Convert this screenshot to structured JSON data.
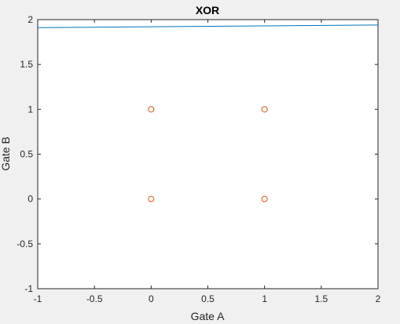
{
  "chart_data": {
    "type": "scatter",
    "title": "XOR",
    "xlabel": "Gate A",
    "ylabel": "Gate B",
    "xlim": [
      -1,
      2
    ],
    "ylim": [
      -1,
      2
    ],
    "xticks": [
      -1,
      -0.5,
      0,
      0.5,
      1,
      1.5,
      2
    ],
    "yticks": [
      -1,
      -0.5,
      0,
      0.5,
      1,
      1.5,
      2
    ],
    "xtick_labels": [
      "-1",
      "-0.5",
      "0",
      "0.5",
      "1",
      "1.5",
      "2"
    ],
    "ytick_labels": [
      "-1",
      "-0.5",
      "0",
      "0.5",
      "1",
      "1.5",
      "2"
    ],
    "grid": false,
    "series": [
      {
        "kind": "line",
        "color": "#0072bd",
        "points": [
          {
            "x": -1,
            "y": 1.91
          },
          {
            "x": 2,
            "y": 1.94
          }
        ]
      },
      {
        "kind": "scatter",
        "marker": "open-circle",
        "color": "#d95319",
        "points": [
          {
            "x": 0,
            "y": 0
          },
          {
            "x": 0,
            "y": 1
          },
          {
            "x": 1,
            "y": 0
          },
          {
            "x": 1,
            "y": 1
          }
        ]
      }
    ]
  }
}
